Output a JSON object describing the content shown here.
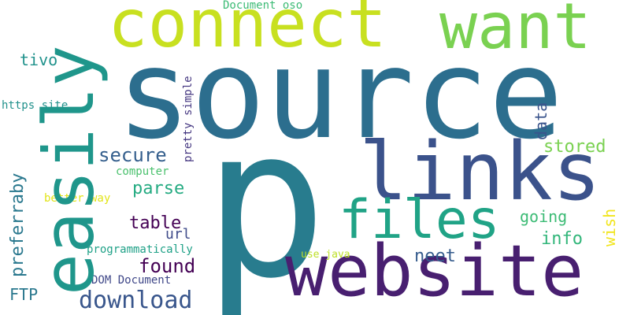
{
  "words": [
    {
      "key": "source",
      "text": "source",
      "color": "#2c6e8e"
    },
    {
      "key": "p",
      "text": "p",
      "color": "#287c8e"
    },
    {
      "key": "website",
      "text": "website",
      "color": "#481f70"
    },
    {
      "key": "connect",
      "text": "connect",
      "color": "#c8e020"
    },
    {
      "key": "want",
      "text": "want",
      "color": "#7ad151"
    },
    {
      "key": "links",
      "text": "links",
      "color": "#3b528b"
    },
    {
      "key": "files",
      "text": "files",
      "color": "#20a386"
    },
    {
      "key": "download",
      "text": "download",
      "color": "#39568c"
    },
    {
      "key": "secure",
      "text": "secure",
      "color": "#355f8d"
    },
    {
      "key": "parse",
      "text": "parse",
      "color": "#25ab82"
    },
    {
      "key": "table",
      "text": "table",
      "color": "#440154"
    },
    {
      "key": "found",
      "text": "found",
      "color": "#440154"
    },
    {
      "key": "url",
      "text": "url",
      "color": "#3e4a89"
    },
    {
      "key": "stored",
      "text": "stored",
      "color": "#7ad151"
    },
    {
      "key": "going",
      "text": "going",
      "color": "#3cbb75"
    },
    {
      "key": "info",
      "text": "info",
      "color": "#32b67a"
    },
    {
      "key": "neet",
      "text": "neet",
      "color": "#365c8d"
    },
    {
      "key": "tivo",
      "text": "tivo",
      "color": "#20928c"
    },
    {
      "key": "https_site",
      "text": "https site",
      "color": "#21918c"
    },
    {
      "key": "computer",
      "text": "computer",
      "color": "#4ac16d"
    },
    {
      "key": "better_way",
      "text": "better way",
      "color": "#e2e418"
    },
    {
      "key": "programmatically",
      "text": "programmatically",
      "color": "#1fa187"
    },
    {
      "key": "dom_document",
      "text": "DOM Document",
      "color": "#3f4788"
    },
    {
      "key": "ftp",
      "text": "FTP",
      "color": "#2a788e"
    },
    {
      "key": "use_java",
      "text": "use java",
      "color": "#bddf26"
    },
    {
      "key": "document_oso",
      "text": "Document oso",
      "color": "#3cbb75"
    },
    {
      "key": "easily",
      "text": "easily",
      "color": "#1f968b"
    },
    {
      "key": "preferraby",
      "text": "preferraby",
      "color": "#2a788e"
    },
    {
      "key": "pretty_simple",
      "text": "pretty simple",
      "color": "#453781"
    },
    {
      "key": "data",
      "text": "data",
      "color": "#3a548c"
    },
    {
      "key": "wish",
      "text": "wish",
      "color": "#f1e51d"
    }
  ]
}
